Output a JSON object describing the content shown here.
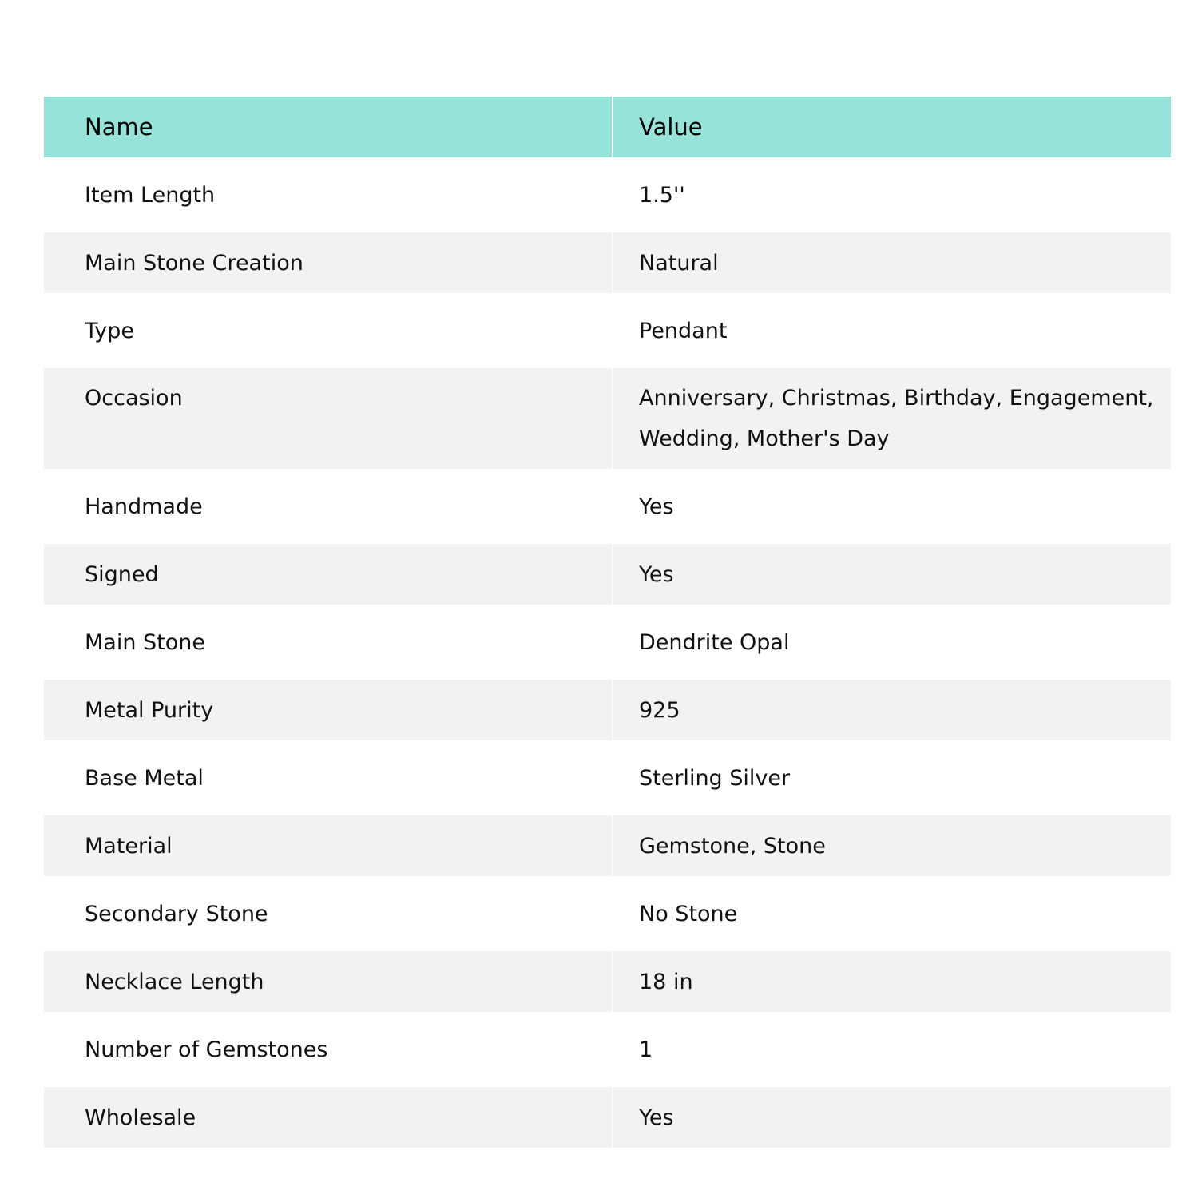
{
  "colors": {
    "header_bg": "#96e3d9",
    "stripe_bg": "#f2f2f2"
  },
  "table": {
    "headers": {
      "name": "Name",
      "value": "Value"
    },
    "rows": [
      {
        "name": "Item Length",
        "value": "1.5''"
      },
      {
        "name": "Main Stone Creation",
        "value": "Natural"
      },
      {
        "name": "Type",
        "value": "Pendant"
      },
      {
        "name": "Occasion",
        "value": "Anniversary, Christmas, Birthday, Engagement, Wedding, Mother's Day"
      },
      {
        "name": "Handmade",
        "value": "Yes"
      },
      {
        "name": "Signed",
        "value": "Yes"
      },
      {
        "name": "Main Stone",
        "value": "Dendrite Opal"
      },
      {
        "name": "Metal Purity",
        "value": "925"
      },
      {
        "name": "Base Metal",
        "value": "Sterling Silver"
      },
      {
        "name": "Material",
        "value": "Gemstone, Stone"
      },
      {
        "name": "Secondary Stone",
        "value": "No Stone"
      },
      {
        "name": "Necklace Length",
        "value": "18 in"
      },
      {
        "name": "Number of Gemstones",
        "value": "1"
      },
      {
        "name": "Wholesale",
        "value": "Yes"
      }
    ]
  }
}
